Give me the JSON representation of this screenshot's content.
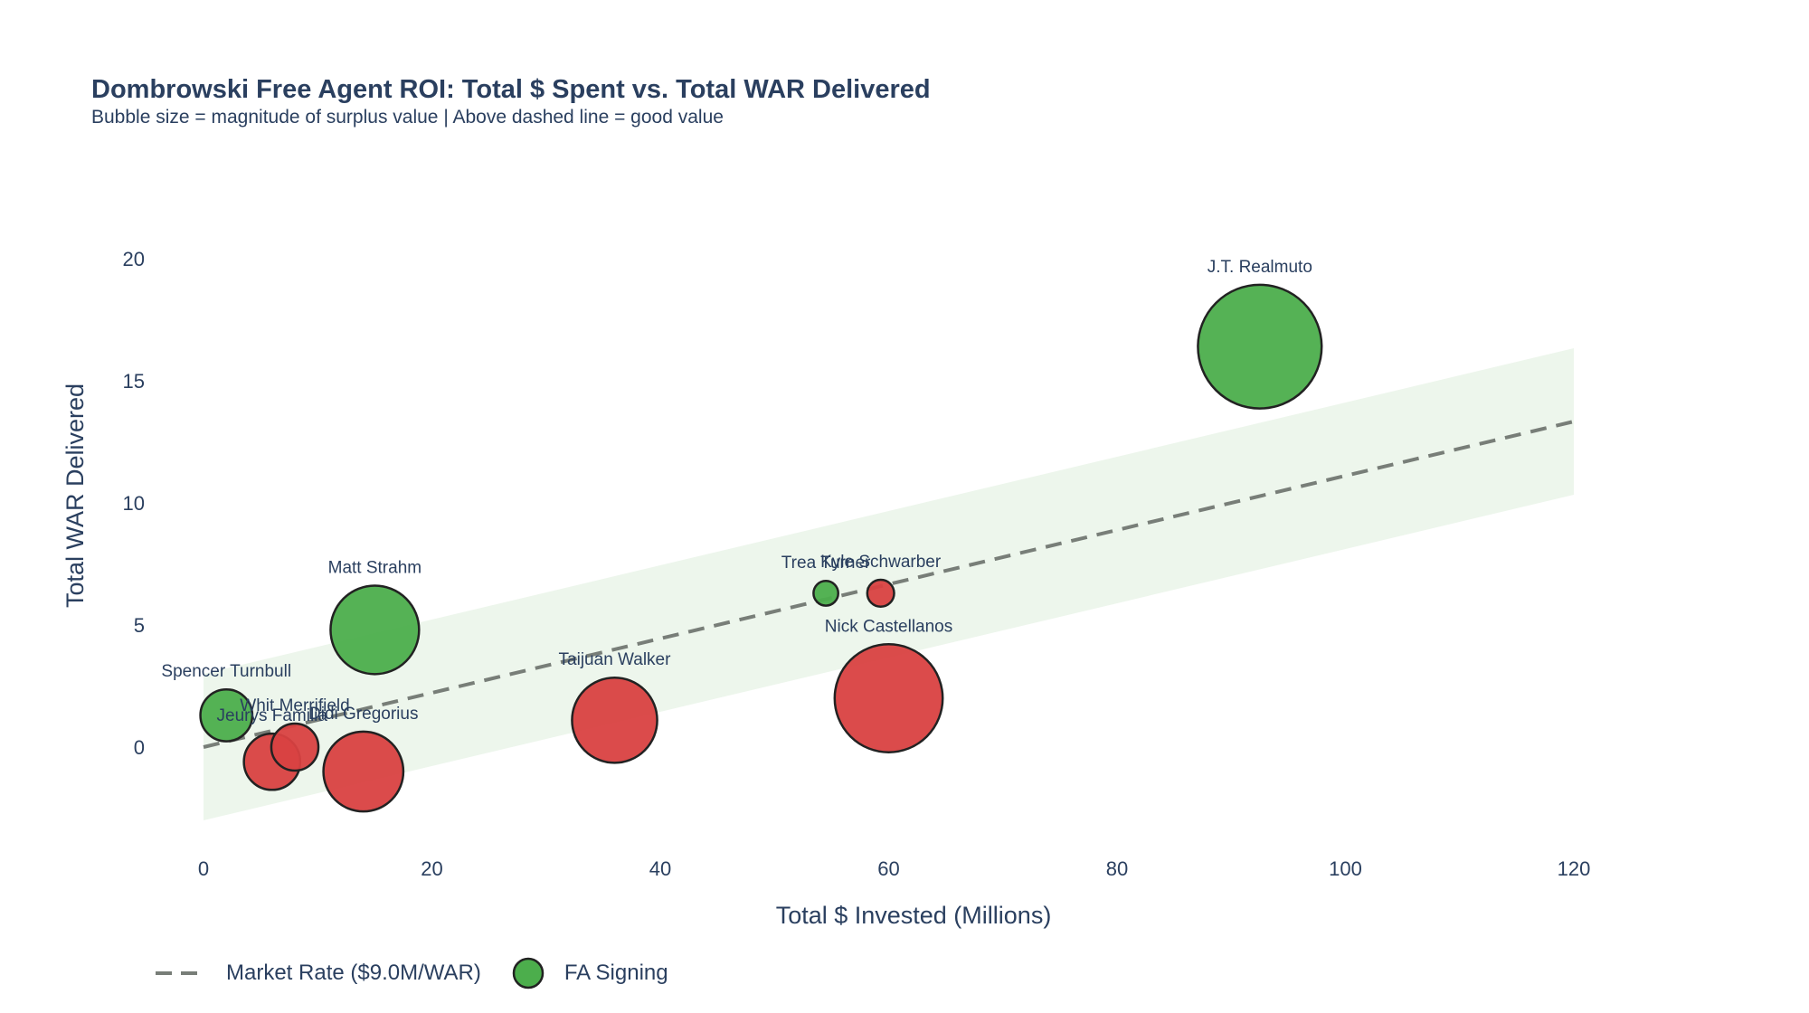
{
  "chart_data": {
    "type": "scatter",
    "title": "Dombrowski Free Agent ROI: Total $ Spent vs. Total WAR Delivered",
    "subtitle": "Bubble size = magnitude of surplus value | Above dashed line = good value",
    "xlabel": "Total $ Invested (Millions)",
    "ylabel": "Total WAR Delivered",
    "xlim": [
      -5,
      135
    ],
    "ylim": [
      -4.5,
      23.5
    ],
    "xticks": [
      0,
      20,
      40,
      60,
      80,
      100,
      120
    ],
    "yticks": [
      0,
      5,
      10,
      15,
      20
    ],
    "grid": false,
    "legend_position": "bottom-left",
    "market_rate": {
      "name": "Market Rate ($9.0M/WAR)",
      "dollars_per_war": 9.0,
      "x_range": [
        0,
        120
      ],
      "band_halfwidth_war": 3,
      "color": "#787e78",
      "band_color": "#edf6ec"
    },
    "colors": {
      "good_value": "#4cae4c",
      "bad_value": "#d94141",
      "outline": "#222222"
    },
    "legend": {
      "series_name": "FA Signing"
    },
    "points": [
      {
        "name": "J.T. Realmuto",
        "x": 92.5,
        "y": 16.4,
        "value": "good"
      },
      {
        "name": "Matt Strahm",
        "x": 15,
        "y": 4.8,
        "value": "good"
      },
      {
        "name": "Trea Turner",
        "x": 54.5,
        "y": 6.3,
        "value": "good"
      },
      {
        "name": "Kyle Schwarber",
        "x": 59.3,
        "y": 6.3,
        "value": "bad"
      },
      {
        "name": "Nick Castellanos",
        "x": 60,
        "y": 2.0,
        "value": "bad"
      },
      {
        "name": "Taijuan Walker",
        "x": 36,
        "y": 1.1,
        "value": "bad"
      },
      {
        "name": "Spencer Turnbull",
        "x": 2,
        "y": 1.3,
        "value": "good"
      },
      {
        "name": "Whit Merrifield",
        "x": 8,
        "y": 0.0,
        "value": "bad"
      },
      {
        "name": "Jeurys Familia",
        "x": 6,
        "y": -0.6,
        "value": "bad"
      },
      {
        "name": "Didi Gregorius",
        "x": 14,
        "y": -1.0,
        "value": "bad"
      }
    ]
  }
}
